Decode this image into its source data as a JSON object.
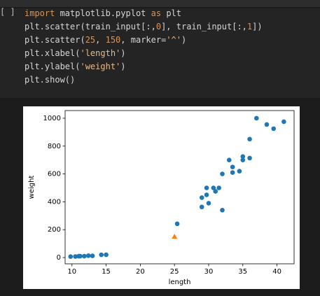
{
  "code": {
    "prompt": "[ ]",
    "lines": [
      [
        {
          "t": "import",
          "c": "#d4955e"
        },
        {
          "t": " matplotlib.pyplot ",
          "c": "#d6d6d6"
        },
        {
          "t": "as",
          "c": "#d4955e"
        },
        {
          "t": " plt",
          "c": "#d6d6d6"
        }
      ],
      [
        {
          "t": "plt.scatter(train_input[:,",
          "c": "#d6d6d6"
        },
        {
          "t": "0",
          "c": "#d4955e"
        },
        {
          "t": "], train_input[:,",
          "c": "#d6d6d6"
        },
        {
          "t": "1",
          "c": "#d4955e"
        },
        {
          "t": "])",
          "c": "#d6d6d6"
        }
      ],
      [
        {
          "t": "plt.scatter(",
          "c": "#d6d6d6"
        },
        {
          "t": "25",
          "c": "#d4955e"
        },
        {
          "t": ", ",
          "c": "#d6d6d6"
        },
        {
          "t": "150",
          "c": "#d4955e"
        },
        {
          "t": ", marker=",
          "c": "#d6d6d6"
        },
        {
          "t": "'^'",
          "c": "#e6b98c"
        },
        {
          "t": ")",
          "c": "#d6d6d6"
        }
      ],
      [
        {
          "t": "plt.xlabel(",
          "c": "#d6d6d6"
        },
        {
          "t": "'length'",
          "c": "#e6b98c"
        },
        {
          "t": ")",
          "c": "#d6d6d6"
        }
      ],
      [
        {
          "t": "plt.ylabel(",
          "c": "#d6d6d6"
        },
        {
          "t": "'weight'",
          "c": "#e6b98c"
        },
        {
          "t": ")",
          "c": "#d6d6d6"
        }
      ],
      [
        {
          "t": "plt.show()",
          "c": "#d6d6d6"
        }
      ]
    ]
  },
  "chart_data": {
    "type": "scatter",
    "xlabel": "length",
    "ylabel": "weight",
    "xlim": [
      9,
      42.5
    ],
    "ylim": [
      -45,
      1055
    ],
    "xticks": [
      10,
      15,
      20,
      25,
      30,
      35,
      40
    ],
    "yticks": [
      0,
      200,
      400,
      600,
      800,
      1000
    ],
    "series": [
      {
        "color": "#1f77b4",
        "marker": "circle",
        "x": [
          9.8,
          10.5,
          11,
          11.2,
          11.8,
          12.4,
          13,
          14.3,
          15,
          25.4,
          29,
          29,
          29.7,
          30,
          29.7,
          30.7,
          31,
          31.5,
          32,
          32,
          33,
          33.5,
          33.5,
          34.5,
          35,
          35,
          36,
          36,
          37,
          38.5,
          39.5,
          41
        ],
        "values": [
          6.7,
          7.5,
          9.7,
          9.8,
          9.9,
          13.4,
          12.2,
          19.7,
          19.9,
          242,
          363,
          430,
          450,
          390,
          500,
          500,
          475,
          500,
          340,
          600,
          700,
          650,
          610,
          620,
          700,
          725,
          714,
          850,
          1000,
          955,
          925,
          975
        ]
      },
      {
        "color": "#ff7f0e",
        "marker": "triangle",
        "x": [
          25
        ],
        "values": [
          150
        ]
      }
    ]
  }
}
